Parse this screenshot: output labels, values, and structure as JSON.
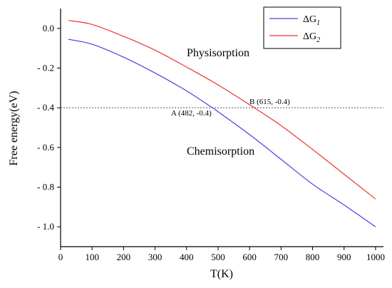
{
  "chart_data": {
    "type": "line",
    "xlabel": "T(K)",
    "ylabel": "Free energy(eV)",
    "xlim": [
      0,
      1025
    ],
    "ylim": [
      -1.1,
      0.1
    ],
    "x_ticks": [
      "0",
      "100",
      "200",
      "300",
      "400",
      "500",
      "600",
      "700",
      "800",
      "900",
      "1000"
    ],
    "y_ticks": [
      "0.0",
      "- 0.2",
      "- 0.4",
      "- 0.6",
      "- 0.8",
      "- 1.0"
    ],
    "legend_position": "top-right",
    "series": [
      {
        "name": "ΔG1",
        "name_base": "ΔG",
        "name_sub": "1",
        "color": "#4444dd",
        "x": [
          25,
          100,
          200,
          300,
          400,
          482,
          500,
          600,
          700,
          800,
          900,
          1000
        ],
        "y": [
          -0.055,
          -0.08,
          -0.145,
          -0.225,
          -0.315,
          -0.4,
          -0.42,
          -0.535,
          -0.66,
          -0.785,
          -0.89,
          -1.0
        ]
      },
      {
        "name": "ΔG2",
        "name_base": "ΔG",
        "name_sub": "2",
        "color": "#ee3333",
        "x": [
          25,
          100,
          200,
          300,
          400,
          500,
          615,
          700,
          800,
          900,
          1000
        ],
        "y": [
          0.04,
          0.02,
          -0.04,
          -0.11,
          -0.195,
          -0.285,
          -0.4,
          -0.49,
          -0.61,
          -0.735,
          -0.86
        ]
      }
    ],
    "reference_line": {
      "y": -0.4,
      "style": "dotted",
      "color": "#555555"
    },
    "annotations": {
      "region_upper": "Physisorption",
      "region_lower": "Chemisorption",
      "point_a": "A (482, -0.4)",
      "point_b": "B (615, -0.4)"
    }
  }
}
